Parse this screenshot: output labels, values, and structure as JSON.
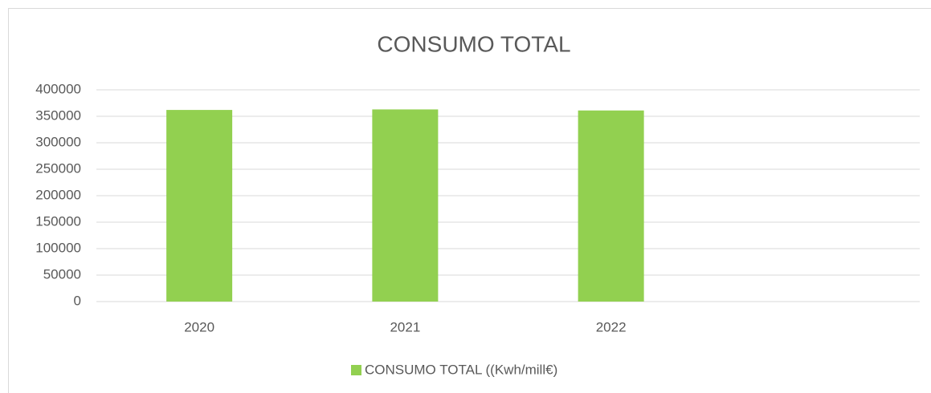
{
  "chart_data": {
    "type": "bar",
    "title": "CONSUMO TOTAL",
    "categories": [
      "2020",
      "2021",
      "2022",
      null
    ],
    "series": [
      {
        "name": "CONSUMO TOTAL ((Kwh/mill€)",
        "color": "#92d050",
        "values": [
          362000,
          363000,
          361000,
          null
        ]
      }
    ],
    "ylim": [
      0,
      400000
    ],
    "yticks": [
      0,
      50000,
      100000,
      150000,
      200000,
      250000,
      300000,
      350000,
      400000
    ],
    "grid": true,
    "legend": "bottom"
  }
}
